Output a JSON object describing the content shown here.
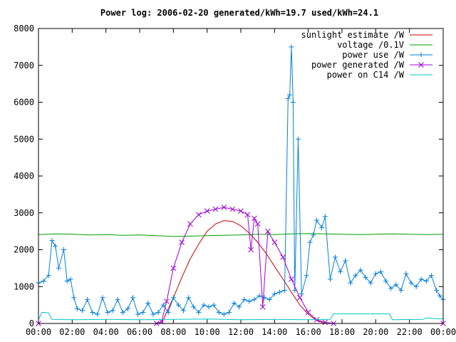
{
  "chart_data": {
    "type": "line",
    "title": "Power log: 2006-02-20 generated/kWh=19.7 used/kWh=24.1",
    "xlabel": "",
    "ylabel": "",
    "xlim": [
      0,
      24
    ],
    "ylim": [
      0,
      8000
    ],
    "xticks": [
      "00:00",
      "02:00",
      "04:00",
      "06:00",
      "08:00",
      "10:00",
      "12:00",
      "14:00",
      "16:00",
      "18:00",
      "20:00",
      "22:00",
      "00:00"
    ],
    "yticks": [
      "0",
      "1000",
      "2000",
      "3000",
      "4000",
      "5000",
      "6000",
      "7000",
      "8000"
    ],
    "legend_position": "top-right",
    "series": [
      {
        "name": "sunlight estimate /W",
        "color": "#cc0000",
        "marker": "none",
        "x": [
          7.3,
          7.6,
          8.0,
          8.5,
          9.0,
          9.5,
          10.0,
          10.5,
          11.0,
          11.5,
          12.0,
          12.5,
          13.0,
          13.5,
          14.0,
          14.5,
          15.0,
          15.5,
          16.0,
          16.5,
          17.0
        ],
        "y": [
          0,
          300,
          700,
          1250,
          1750,
          2150,
          2500,
          2700,
          2790,
          2770,
          2650,
          2450,
          2200,
          1900,
          1550,
          1200,
          850,
          500,
          250,
          80,
          0
        ]
      },
      {
        "name": "voltage /0.1V",
        "color": "#00a000",
        "marker": "none",
        "x": [
          0,
          1,
          2,
          3,
          4,
          5,
          6,
          7,
          8,
          9,
          10,
          11,
          12,
          13,
          14,
          15,
          16,
          17,
          18,
          19,
          20,
          21,
          22,
          23,
          24
        ],
        "y": [
          2410,
          2430,
          2420,
          2400,
          2410,
          2390,
          2400,
          2380,
          2360,
          2370,
          2380,
          2390,
          2400,
          2420,
          2410,
          2430,
          2440,
          2430,
          2420,
          2410,
          2420,
          2430,
          2420,
          2410,
          2420
        ]
      },
      {
        "name": "power use /W",
        "color": "#0080e0",
        "marker": "plus",
        "x": [
          0,
          0.3,
          0.6,
          0.8,
          1.0,
          1.2,
          1.5,
          1.7,
          1.9,
          2.1,
          2.3,
          2.6,
          2.9,
          3.2,
          3.5,
          3.8,
          4.1,
          4.4,
          4.7,
          5.0,
          5.3,
          5.6,
          5.9,
          6.2,
          6.5,
          6.8,
          7.1,
          7.4,
          7.7,
          8.0,
          8.3,
          8.6,
          8.9,
          9.2,
          9.5,
          9.8,
          10.1,
          10.4,
          10.7,
          11.0,
          11.3,
          11.6,
          11.9,
          12.2,
          12.5,
          12.8,
          13.1,
          13.4,
          13.7,
          14.0,
          14.3,
          14.6,
          14.8,
          14.9,
          15.0,
          15.1,
          15.2,
          15.4,
          15.6,
          15.9,
          16.1,
          16.3,
          16.5,
          16.8,
          17.0,
          17.3,
          17.6,
          17.9,
          18.2,
          18.5,
          18.8,
          19.1,
          19.4,
          19.7,
          20.0,
          20.3,
          20.6,
          20.9,
          21.2,
          21.5,
          21.8,
          22.1,
          22.4,
          22.7,
          23.0,
          23.3,
          23.6,
          23.8,
          24.0
        ],
        "y": [
          1100,
          1150,
          1300,
          2250,
          2100,
          1500,
          2000,
          1150,
          1200,
          700,
          400,
          350,
          650,
          300,
          250,
          700,
          300,
          350,
          650,
          300,
          400,
          700,
          250,
          300,
          550,
          250,
          300,
          500,
          300,
          700,
          500,
          350,
          700,
          450,
          300,
          500,
          450,
          500,
          300,
          250,
          300,
          550,
          450,
          650,
          600,
          650,
          750,
          700,
          650,
          800,
          850,
          900,
          6100,
          6200,
          7500,
          6000,
          900,
          5000,
          800,
          1300,
          2200,
          2400,
          2800,
          2600,
          2900,
          1200,
          1800,
          1400,
          1700,
          1100,
          1300,
          1450,
          1250,
          1100,
          1350,
          1400,
          1150,
          950,
          1050,
          900,
          1350,
          1100,
          1000,
          1200,
          1150,
          1300,
          900,
          750,
          650
        ]
      },
      {
        "name": "power generated /W",
        "color": "#a000e0",
        "marker": "cross",
        "x": [
          0,
          7.0,
          7.3,
          7.6,
          8.0,
          8.5,
          9.0,
          9.5,
          10.0,
          10.5,
          11.0,
          11.5,
          12.0,
          12.4,
          12.6,
          12.8,
          13.0,
          13.3,
          13.6,
          14.0,
          14.5,
          15.0,
          15.5,
          16.0,
          16.5,
          17.0,
          17.5,
          24.0
        ],
        "y": [
          0,
          0,
          50,
          600,
          1500,
          2200,
          2700,
          2950,
          3050,
          3100,
          3150,
          3100,
          3050,
          2950,
          2000,
          2850,
          2700,
          450,
          2500,
          2200,
          1800,
          1200,
          700,
          300,
          100,
          30,
          0,
          0
        ]
      },
      {
        "name": "power on C14 /W",
        "color": "#00c8c8",
        "marker": "none",
        "x": [
          0,
          0.2,
          0.4,
          0.6,
          0.8,
          2.0,
          4.0,
          6.0,
          8.0,
          10.0,
          12.0,
          14.0,
          16.0,
          17.3,
          17.5,
          20.8,
          21.0,
          22.8,
          23.0,
          24.0
        ],
        "y": [
          100,
          300,
          300,
          280,
          110,
          100,
          110,
          100,
          110,
          120,
          100,
          110,
          100,
          110,
          260,
          260,
          100,
          110,
          150,
          120
        ]
      }
    ]
  }
}
